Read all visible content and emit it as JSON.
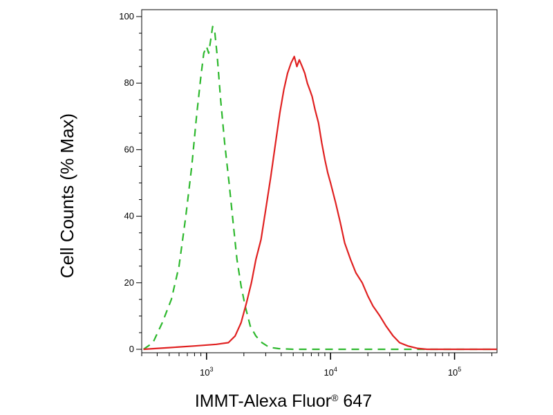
{
  "chart_data": {
    "type": "line",
    "title": "",
    "xlabel": "IMMT-Alexa Fluor",
    "xlabel_mark": "®",
    "xlabel_suffix": " 647",
    "ylabel": "Cell Counts (% Max)",
    "x_scale": "log",
    "xlim": [
      300,
      220000
    ],
    "ylim": [
      0,
      100
    ],
    "grid": false,
    "legend": "none",
    "x_ticks": [
      {
        "value": 1000,
        "base": "10",
        "exp": "3"
      },
      {
        "value": 10000,
        "base": "10",
        "exp": "4"
      },
      {
        "value": 100000,
        "base": "10",
        "exp": "5"
      }
    ],
    "y_ticks": [
      {
        "value": 0,
        "label": "0"
      },
      {
        "value": 20,
        "label": "20"
      },
      {
        "value": 40,
        "label": "40"
      },
      {
        "value": 60,
        "label": "60"
      },
      {
        "value": 80,
        "label": "80"
      },
      {
        "value": 100,
        "label": "100"
      }
    ],
    "series": [
      {
        "color": "#2db82d",
        "style": "dashed",
        "points": [
          [
            310,
            0
          ],
          [
            370,
            2
          ],
          [
            440,
            8
          ],
          [
            520,
            15
          ],
          [
            600,
            25
          ],
          [
            680,
            40
          ],
          [
            760,
            55
          ],
          [
            830,
            70
          ],
          [
            900,
            82
          ],
          [
            950,
            89
          ],
          [
            1000,
            91
          ],
          [
            1040,
            89
          ],
          [
            1080,
            93
          ],
          [
            1120,
            97
          ],
          [
            1160,
            96
          ],
          [
            1220,
            88
          ],
          [
            1300,
            75
          ],
          [
            1400,
            62
          ],
          [
            1520,
            50
          ],
          [
            1640,
            38
          ],
          [
            1760,
            27
          ],
          [
            1900,
            19
          ],
          [
            2050,
            13
          ],
          [
            2250,
            7
          ],
          [
            2500,
            4
          ],
          [
            2800,
            2
          ],
          [
            3200,
            0.6
          ],
          [
            3800,
            0.2
          ],
          [
            5000,
            0
          ],
          [
            220000,
            0
          ]
        ]
      },
      {
        "color": "#e02020",
        "style": "solid",
        "points": [
          [
            310,
            0
          ],
          [
            500,
            0.5
          ],
          [
            800,
            1
          ],
          [
            1200,
            1.5
          ],
          [
            1500,
            2
          ],
          [
            1700,
            4
          ],
          [
            1900,
            8
          ],
          [
            2100,
            14
          ],
          [
            2300,
            20
          ],
          [
            2500,
            27
          ],
          [
            2750,
            33
          ],
          [
            3000,
            42
          ],
          [
            3300,
            52
          ],
          [
            3600,
            62
          ],
          [
            3900,
            71
          ],
          [
            4200,
            78
          ],
          [
            4500,
            83
          ],
          [
            4800,
            86
          ],
          [
            5100,
            88
          ],
          [
            5350,
            85
          ],
          [
            5600,
            87
          ],
          [
            5900,
            85
          ],
          [
            6200,
            83
          ],
          [
            6500,
            80
          ],
          [
            6800,
            78
          ],
          [
            7100,
            76
          ],
          [
            7500,
            72
          ],
          [
            8000,
            68
          ],
          [
            8500,
            62
          ],
          [
            9000,
            57
          ],
          [
            9500,
            53
          ],
          [
            10000,
            50
          ],
          [
            11000,
            44
          ],
          [
            12000,
            38
          ],
          [
            13000,
            32
          ],
          [
            14500,
            27
          ],
          [
            16000,
            23
          ],
          [
            18000,
            20
          ],
          [
            20000,
            16
          ],
          [
            22000,
            13
          ],
          [
            25000,
            10
          ],
          [
            28000,
            7
          ],
          [
            32000,
            4
          ],
          [
            36000,
            2
          ],
          [
            42000,
            1
          ],
          [
            50000,
            0.3
          ],
          [
            60000,
            0
          ],
          [
            220000,
            0
          ]
        ]
      }
    ]
  }
}
